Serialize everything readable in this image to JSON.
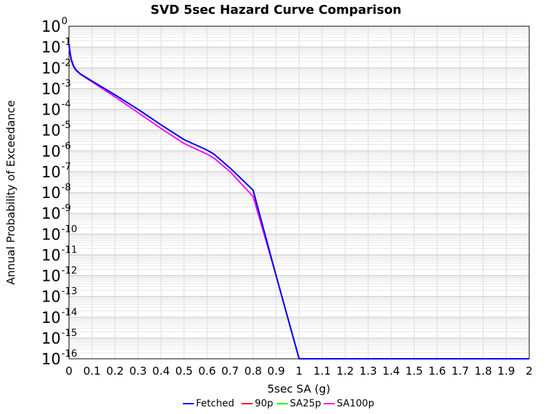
{
  "chart_data": {
    "type": "line",
    "title": "SVD 5sec Hazard Curve Comparison",
    "xlabel": "5sec SA (g)",
    "ylabel": "Annual Probability of Exceedance",
    "xlim": [
      0,
      2
    ],
    "ylim": [
      1e-16,
      1
    ],
    "yscale": "log",
    "grid": true,
    "legend_position": "bottom",
    "x_ticks": [
      "0",
      "0.1",
      "0.2",
      "0.3",
      "0.4",
      "0.5",
      "0.6",
      "0.7",
      "0.8",
      "0.9",
      "1",
      "1.1",
      "1.2",
      "1.3",
      "1.4",
      "1.5",
      "1.6",
      "1.7",
      "1.8",
      "1.9",
      "2"
    ],
    "y_tick_exponents": [
      "0",
      "-1",
      "-2",
      "-3",
      "-4",
      "-5",
      "-6",
      "-7",
      "-8",
      "-9",
      "-10",
      "-11",
      "-12",
      "-13",
      "-14",
      "-15",
      "-16"
    ],
    "y_tick_base": "10",
    "series": [
      {
        "name": "Fetched",
        "color": "#0000ff",
        "x": [
          0.0,
          0.005,
          0.01,
          0.02,
          0.03,
          0.05,
          0.1,
          0.2,
          0.3,
          0.4,
          0.5,
          0.6,
          0.63,
          0.7,
          0.8,
          0.9,
          1.0,
          1.05,
          2.0
        ],
        "y": [
          0.13,
          0.05,
          0.025,
          0.012,
          0.008,
          0.005,
          0.0023,
          0.0005,
          0.0001,
          1.8e-05,
          3.5e-06,
          1.1e-06,
          7e-07,
          1.5e-07,
          1.3e-08,
          1e-12,
          1e-16,
          1e-16,
          1e-16
        ]
      },
      {
        "name": "90p",
        "color": "#ff0000",
        "x": [
          0.0,
          0.005,
          0.01,
          0.02,
          0.03,
          0.05,
          0.1,
          0.2,
          0.3,
          0.4,
          0.5,
          0.6,
          0.63,
          0.7,
          0.8,
          0.9,
          1.0,
          1.05,
          2.0
        ],
        "y": [
          0.13,
          0.05,
          0.025,
          0.012,
          0.008,
          0.005,
          0.0023,
          0.0005,
          0.0001,
          1.8e-05,
          3.5e-06,
          1.1e-06,
          7e-07,
          1.5e-07,
          1.3e-08,
          1e-12,
          1e-16,
          1e-16,
          1e-16
        ]
      },
      {
        "name": "SA25p",
        "color": "#00ff00",
        "x": [
          0.0,
          0.005,
          0.01,
          0.02,
          0.03,
          0.05,
          0.1,
          0.2,
          0.3,
          0.4,
          0.5,
          0.6,
          0.63,
          0.7,
          0.8,
          0.9,
          1.0,
          1.05,
          2.0
        ],
        "y": [
          0.13,
          0.05,
          0.025,
          0.012,
          0.008,
          0.005,
          0.0023,
          0.0005,
          0.0001,
          1.8e-05,
          3.5e-06,
          1.1e-06,
          7e-07,
          1.5e-07,
          1.3e-08,
          1e-12,
          1e-16,
          1e-16,
          1e-16
        ]
      },
      {
        "name": "SA100p",
        "color": "#ff00ff",
        "x": [
          0.0,
          0.005,
          0.01,
          0.02,
          0.03,
          0.05,
          0.1,
          0.2,
          0.3,
          0.4,
          0.5,
          0.6,
          0.63,
          0.7,
          0.8,
          0.9,
          1.0,
          1.05,
          2.0
        ],
        "y": [
          0.12,
          0.045,
          0.022,
          0.011,
          0.0075,
          0.0048,
          0.0021,
          0.0004,
          7e-05,
          1.2e-05,
          2.3e-06,
          7e-07,
          4.5e-07,
          1e-07,
          6.5e-09,
          1e-12,
          1e-16,
          1e-16,
          1e-16
        ]
      }
    ]
  }
}
